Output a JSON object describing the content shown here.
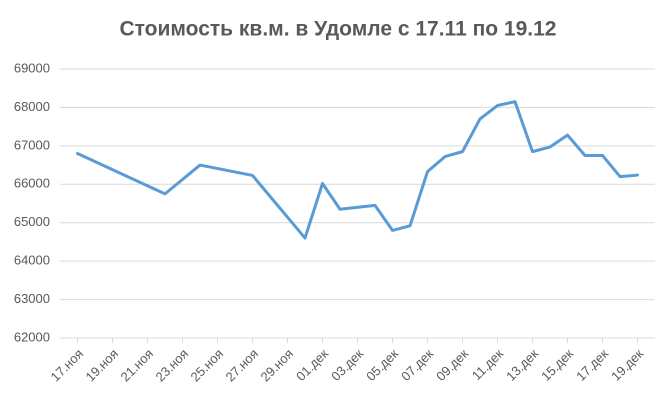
{
  "chart_data": {
    "type": "line",
    "title": "Стоимость кв.м. в Удомле с 17.11 по 19.12",
    "x": [
      "11-17",
      "11-22",
      "11-24",
      "11-27",
      "11-30",
      "12-01",
      "12-02",
      "12-04",
      "12-05",
      "12-06",
      "12-07",
      "12-08",
      "12-09",
      "12-10",
      "12-11",
      "12-12",
      "12-13",
      "12-14",
      "12-15",
      "12-16",
      "12-17",
      "12-18",
      "12-19"
    ],
    "series": [
      {
        "name": "Стоимость кв.м.",
        "color": "#5b9bd5",
        "values": [
          66800,
          65750,
          66500,
          66230,
          64600,
          66020,
          65350,
          65450,
          64800,
          64920,
          66330,
          66720,
          66850,
          67700,
          68050,
          68150,
          66850,
          66970,
          67280,
          66750,
          66750,
          66200,
          66240
        ]
      }
    ],
    "xlim": [
      "11-16",
      "12-20"
    ],
    "xticks": [
      {
        "value": "11-17",
        "label": "17.ноя"
      },
      {
        "value": "11-19",
        "label": "19.ноя"
      },
      {
        "value": "11-21",
        "label": "21.ноя"
      },
      {
        "value": "11-23",
        "label": "23.ноя"
      },
      {
        "value": "11-25",
        "label": "25.ноя"
      },
      {
        "value": "11-27",
        "label": "27.ноя"
      },
      {
        "value": "11-29",
        "label": "29.ноя"
      },
      {
        "value": "12-01",
        "label": "01.дек"
      },
      {
        "value": "12-03",
        "label": "03.дек"
      },
      {
        "value": "12-05",
        "label": "05.дек"
      },
      {
        "value": "12-07",
        "label": "07.дек"
      },
      {
        "value": "12-09",
        "label": "09.дек"
      },
      {
        "value": "12-11",
        "label": "11.дек"
      },
      {
        "value": "12-13",
        "label": "13.дек"
      },
      {
        "value": "12-15",
        "label": "15.дек"
      },
      {
        "value": "12-17",
        "label": "17.дек"
      },
      {
        "value": "12-19",
        "label": "19.дек"
      }
    ],
    "ylim": [
      62000,
      69000
    ],
    "yticks": [
      62000,
      63000,
      64000,
      65000,
      66000,
      67000,
      68000,
      69000
    ],
    "grid": true
  }
}
